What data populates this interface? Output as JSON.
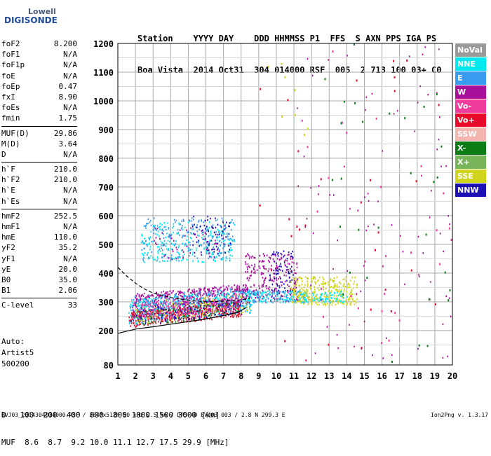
{
  "logo": {
    "line1": "Lowell",
    "line2": "DIGISONDE"
  },
  "header": {
    "labels": "Station    YYYY DAY    DDD HHMMSS P1  FFS  S AXN PPS IGA PS",
    "values": "Boa Vista  2014 Oct31  304 014000 RSF  005  2 713 100 03+ C0"
  },
  "params": [
    [
      [
        "foF2",
        "8.200"
      ],
      [
        "foF1",
        "N/A"
      ],
      [
        "foF1p",
        "N/A"
      ],
      [
        "foE",
        "N/A"
      ],
      [
        "foEp",
        "0.47"
      ],
      [
        "fxI",
        "8.90"
      ],
      [
        "foEs",
        "N/A"
      ],
      [
        "fmin",
        "1.75"
      ]
    ],
    [
      [
        "MUF(D)",
        "29.86"
      ],
      [
        "M(D)",
        "3.64"
      ],
      [
        "D",
        "N/A"
      ]
    ],
    [
      [
        "h`F",
        "210.0"
      ],
      [
        "h`F2",
        "210.0"
      ],
      [
        "h`E",
        "N/A"
      ],
      [
        "h`Es",
        "N/A"
      ]
    ],
    [
      [
        "hmF2",
        "252.5"
      ],
      [
        "hmF1",
        "N/A"
      ],
      [
        "hmE",
        "110.0"
      ],
      [
        "yF2",
        "35.2"
      ],
      [
        "yF1",
        "N/A"
      ],
      [
        "yE",
        "20.0"
      ],
      [
        "B0",
        "35.0"
      ],
      [
        "B1",
        "2.06"
      ]
    ],
    [
      [
        "C-level",
        "33"
      ]
    ]
  ],
  "auto": {
    "line1": "Auto:",
    "line2": "Artist5",
    "line3": "500200"
  },
  "muf_table": {
    "d_label": "D",
    "d_values": "100  200  400  600  800 1000 1500 3000 [km]",
    "muf_label": "MUF",
    "muf_values": " 8.6  8.7  9.2 10.0 11.1 12.7 17.5 29.9 [MHz]"
  },
  "footer": "BVJ03_2014304014000.RSF / 384fx512h 50 kHz 2.5 km / DPS-4D BVJ03 003 / 2.8 N 299.3 E",
  "version": "Ion2Png v. 1.3.17",
  "legend": [
    {
      "label": "NoVal",
      "color": "#9a9a9a"
    },
    {
      "label": "NNE",
      "color": "#00e8f0"
    },
    {
      "label": "E",
      "color": "#3a9cf0"
    },
    {
      "label": "W",
      "color": "#a8109c"
    },
    {
      "label": "Vo-",
      "color": "#f03c9c"
    },
    {
      "label": "Vo+",
      "color": "#e80a2a"
    },
    {
      "label": "SSW",
      "color": "#f4b4b0"
    },
    {
      "label": "X-",
      "color": "#0c7c14"
    },
    {
      "label": "X+",
      "color": "#78b45a"
    },
    {
      "label": "SSE",
      "color": "#d0d41c"
    },
    {
      "label": "NNW",
      "color": "#1c10b4"
    }
  ],
  "chart_data": {
    "type": "scatter",
    "xlim": [
      1,
      20
    ],
    "ylim": [
      80,
      1200
    ],
    "xticks": [
      1,
      2,
      3,
      4,
      5,
      6,
      7,
      8,
      9,
      10,
      11,
      12,
      13,
      14,
      15,
      16,
      17,
      18,
      19,
      20
    ],
    "yticks": [
      80,
      200,
      300,
      400,
      500,
      600,
      700,
      800,
      900,
      1000,
      1100,
      1200
    ],
    "grid": true,
    "clusters": [
      {
        "color": "#a8109c",
        "x": [
          1.8,
          8.3
        ],
        "y": [
          240,
          330
        ],
        "n": 700
      },
      {
        "color": "#3a9cf0",
        "x": [
          1.6,
          8.6
        ],
        "y": [
          225,
          320
        ],
        "n": 320
      },
      {
        "color": "#00e8f0",
        "x": [
          1.6,
          8.6
        ],
        "y": [
          225,
          310
        ],
        "n": 220
      },
      {
        "color": "#e80a2a",
        "x": [
          1.6,
          8.0
        ],
        "y": [
          212,
          268
        ],
        "n": 320
      },
      {
        "color": "#0c7c14",
        "x": [
          1.8,
          8.0
        ],
        "y": [
          215,
          270
        ],
        "n": 120
      },
      {
        "color": "#1c10b4",
        "x": [
          1.7,
          8.0
        ],
        "y": [
          218,
          280
        ],
        "n": 120
      },
      {
        "color": "#f03c9c",
        "x": [
          2.0,
          8.0
        ],
        "y": [
          225,
          300
        ],
        "n": 120
      },
      {
        "color": "#d0d41c",
        "x": [
          2.0,
          8.5
        ],
        "y": [
          225,
          300
        ],
        "n": 90
      },
      {
        "color": "#00e8f0",
        "x": [
          2.3,
          7.6
        ],
        "y": [
          440,
          580
        ],
        "n": 230
      },
      {
        "color": "#3a9cf0",
        "x": [
          2.3,
          7.6
        ],
        "y": [
          445,
          595
        ],
        "n": 200
      },
      {
        "color": "#1c10b4",
        "x": [
          5.2,
          7.4
        ],
        "y": [
          470,
          600
        ],
        "n": 70
      },
      {
        "color": "#a8109c",
        "x": [
          3.0,
          7.0
        ],
        "y": [
          450,
          560
        ],
        "n": 50
      },
      {
        "color": "#a8109c",
        "x": [
          8.2,
          11.2
        ],
        "y": [
          300,
          470
        ],
        "n": 260
      },
      {
        "color": "#1c10b4",
        "x": [
          9.6,
          11.0
        ],
        "y": [
          330,
          480
        ],
        "n": 70
      },
      {
        "color": "#00e8f0",
        "x": [
          8.3,
          11.8
        ],
        "y": [
          300,
          340
        ],
        "n": 130
      },
      {
        "color": "#3a9cf0",
        "x": [
          8.3,
          11.8
        ],
        "y": [
          300,
          340
        ],
        "n": 70
      },
      {
        "color": "#d0d41c",
        "x": [
          10.8,
          14.6
        ],
        "y": [
          290,
          390
        ],
        "n": 320
      },
      {
        "color": "#00e8f0",
        "x": [
          12.0,
          14.0
        ],
        "y": [
          300,
          340
        ],
        "n": 60
      },
      {
        "color": "#a8109c",
        "x": [
          11.0,
          20
        ],
        "y": [
          80,
          1200
        ],
        "n": 90
      },
      {
        "color": "#f03c9c",
        "x": [
          11.5,
          20
        ],
        "y": [
          80,
          1200
        ],
        "n": 30
      },
      {
        "color": "#e80a2a",
        "x": [
          9.0,
          20
        ],
        "y": [
          80,
          1200
        ],
        "n": 30
      },
      {
        "color": "#0c7c14",
        "x": [
          12.0,
          20
        ],
        "y": [
          80,
          1200
        ],
        "n": 30
      },
      {
        "color": "#d0d41c",
        "x": [
          9.0,
          12.0
        ],
        "y": [
          850,
          1150
        ],
        "n": 8
      }
    ],
    "trace_solid": [
      [
        1,
        190
      ],
      [
        2,
        205
      ],
      [
        3,
        213
      ],
      [
        4,
        222
      ],
      [
        5,
        231
      ],
      [
        6,
        240
      ],
      [
        7,
        252
      ],
      [
        7.8,
        263
      ],
      [
        8.3,
        280
      ]
    ],
    "trace_dashed": [
      [
        1,
        420
      ],
      [
        1.5,
        390
      ],
      [
        2,
        365
      ],
      [
        2.5,
        345
      ],
      [
        3,
        330
      ],
      [
        4,
        315
      ],
      [
        5,
        305
      ],
      [
        6,
        300
      ],
      [
        7,
        302
      ],
      [
        8,
        307
      ],
      [
        8.5,
        312
      ]
    ]
  }
}
